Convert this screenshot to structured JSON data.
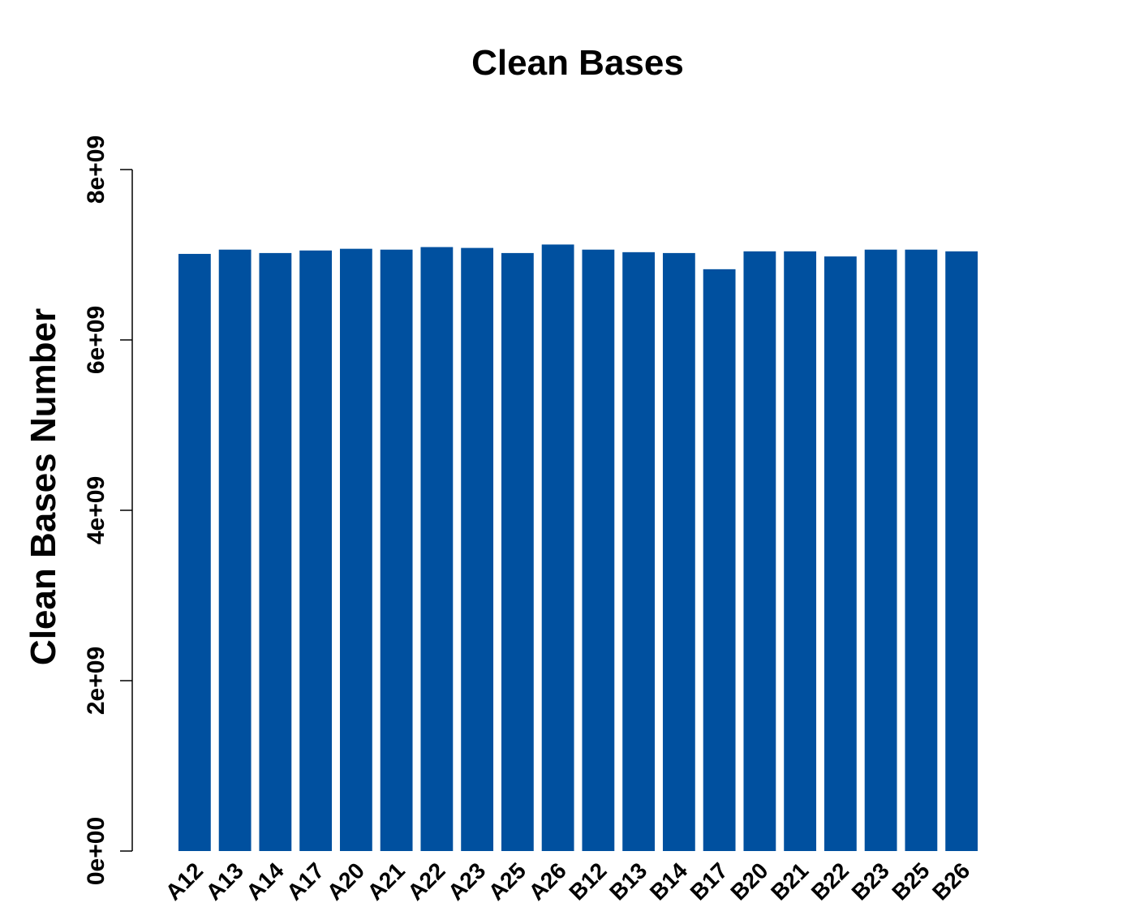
{
  "chart_data": {
    "type": "bar",
    "title": "Clean Bases",
    "xlabel": "",
    "ylabel": "Clean Bases Number",
    "ylim": [
      0,
      8000000000
    ],
    "yticks": [
      {
        "value": 0,
        "label": "0e+00"
      },
      {
        "value": 2000000000,
        "label": "2e+09"
      },
      {
        "value": 4000000000,
        "label": "4e+09"
      },
      {
        "value": 6000000000,
        "label": "6e+09"
      },
      {
        "value": 8000000000,
        "label": "8e+09"
      }
    ],
    "categories": [
      "A12",
      "A13",
      "A14",
      "A17",
      "A20",
      "A21",
      "A22",
      "A23",
      "A25",
      "A26",
      "B12",
      "B13",
      "B14",
      "B17",
      "B20",
      "B21",
      "B22",
      "B23",
      "B25",
      "B26"
    ],
    "values": [
      7010000000,
      7060000000,
      7020000000,
      7050000000,
      7070000000,
      7060000000,
      7090000000,
      7080000000,
      7020000000,
      7120000000,
      7060000000,
      7030000000,
      7020000000,
      6830000000,
      7040000000,
      7040000000,
      6980000000,
      7060000000,
      7060000000,
      7040000000
    ],
    "bar_color": "#00509f",
    "grid": false
  }
}
